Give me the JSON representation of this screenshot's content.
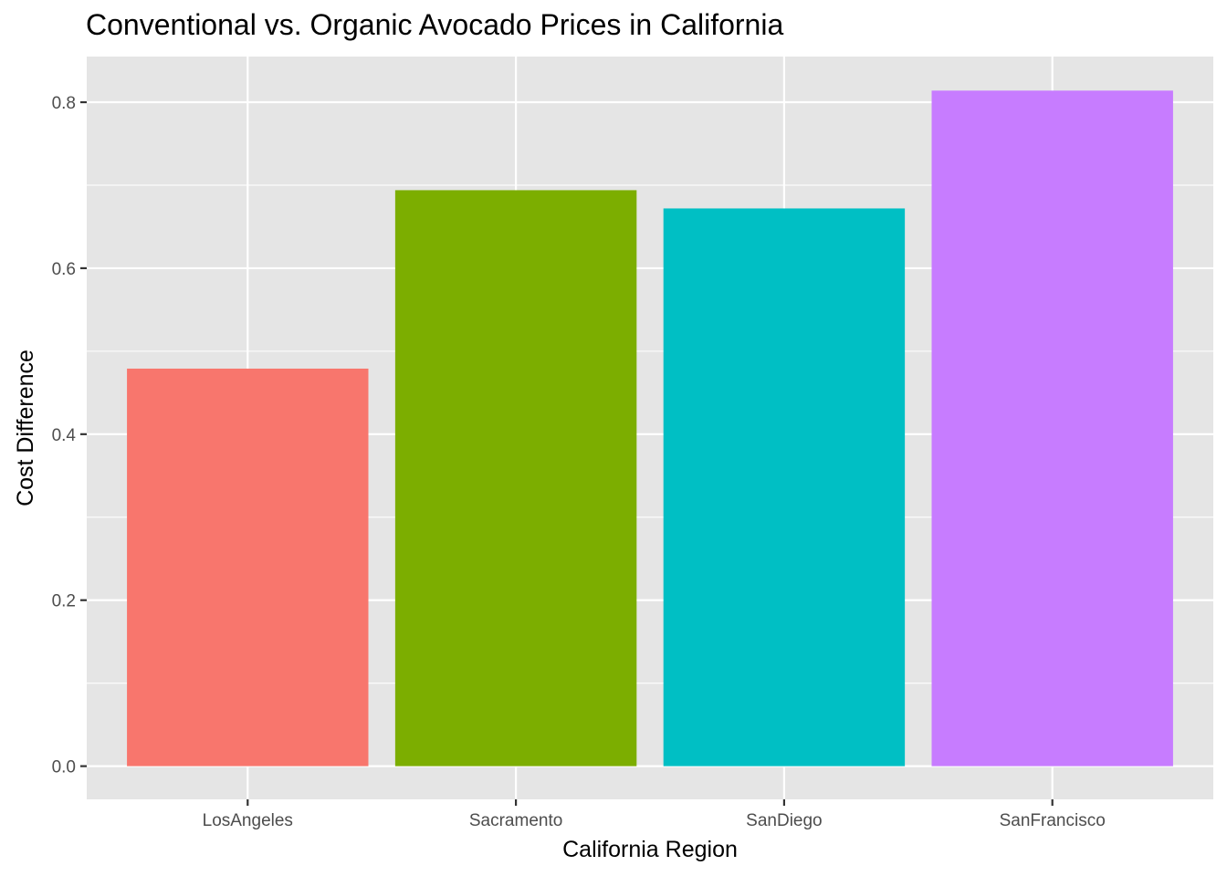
{
  "chart_data": {
    "type": "bar",
    "title": "Conventional vs. Organic Avocado Prices in California",
    "xlabel": "California Region",
    "ylabel": "Cost Difference",
    "categories": [
      "LosAngeles",
      "Sacramento",
      "SanDiego",
      "SanFrancisco"
    ],
    "values": [
      0.479,
      0.694,
      0.672,
      0.814
    ],
    "colors": [
      "#F8766D",
      "#7CAE00",
      "#00BFC4",
      "#C77CFF"
    ],
    "ylim": [
      -0.04,
      0.855
    ],
    "yticks": [
      0.0,
      0.2,
      0.4,
      0.6,
      0.8
    ],
    "ytick_labels": [
      "0.0",
      "0.2",
      "0.4",
      "0.6",
      "0.8"
    ],
    "grid": true,
    "legend": "none",
    "panel_background": "#E5E5E5",
    "grid_color": "#FFFFFF"
  }
}
